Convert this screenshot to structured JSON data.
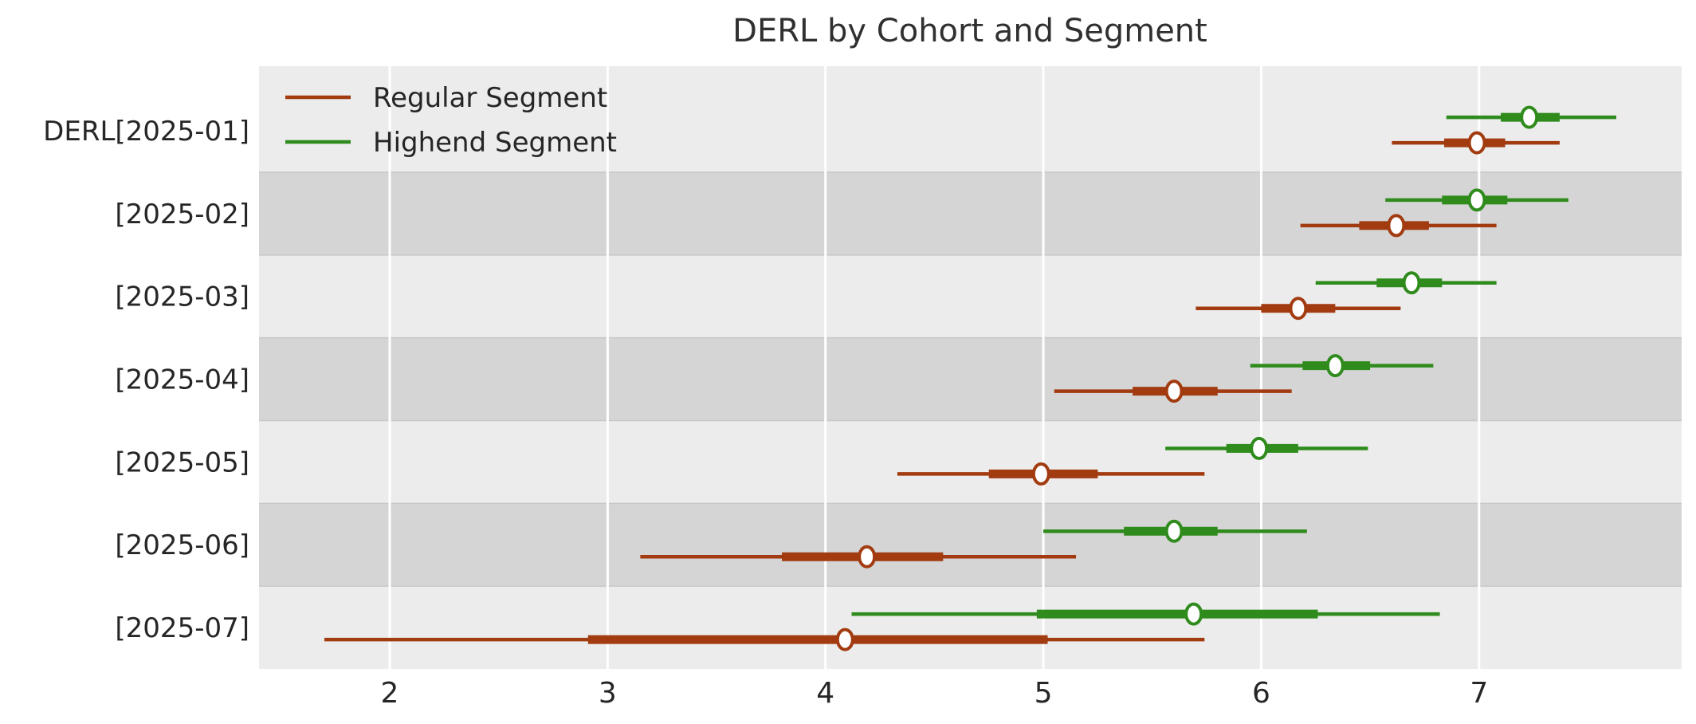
{
  "chart_data": {
    "type": "interval",
    "variant": "forest-plot-credible-intervals",
    "title": "DERL by Cohort and Segment",
    "categories": [
      "DERL[2025-01]",
      "[2025-02]",
      "[2025-03]",
      "[2025-04]",
      "[2025-05]",
      "[2025-06]",
      "[2025-07]"
    ],
    "x_ticks": [
      2,
      3,
      4,
      5,
      6,
      7
    ],
    "xlim": [
      1.4,
      7.93
    ],
    "grid": "vertical-white-gridlines-on-gray-bands",
    "legend_position": "upper-left-inside",
    "colors": {
      "band_light": "#ececec",
      "band_dark": "#d5d5d5",
      "band_edge": "#c7c7c7",
      "gridline": "#ffffff",
      "text": "#262626",
      "title": "#303030",
      "marker_fill": "#ffffff"
    },
    "series": [
      {
        "name": "Regular Segment",
        "color": "#a23b10",
        "intervals": [
          {
            "lo95": 6.6,
            "lo50": 6.84,
            "median": 6.99,
            "hi50": 7.12,
            "hi95": 7.37
          },
          {
            "lo95": 6.18,
            "lo50": 6.45,
            "median": 6.62,
            "hi50": 6.77,
            "hi95": 7.08
          },
          {
            "lo95": 5.7,
            "lo50": 6.0,
            "median": 6.17,
            "hi50": 6.34,
            "hi95": 6.64
          },
          {
            "lo95": 5.05,
            "lo50": 5.41,
            "median": 5.6,
            "hi50": 5.8,
            "hi95": 6.14
          },
          {
            "lo95": 4.33,
            "lo50": 4.75,
            "median": 4.99,
            "hi50": 5.25,
            "hi95": 5.74
          },
          {
            "lo95": 3.15,
            "lo50": 3.8,
            "median": 4.19,
            "hi50": 4.54,
            "hi95": 5.15
          },
          {
            "lo95": 1.7,
            "lo50": 2.91,
            "median": 4.09,
            "hi50": 5.02,
            "hi95": 5.74
          }
        ]
      },
      {
        "name": "Highend Segment",
        "color": "#2e8b1c",
        "intervals": [
          {
            "lo95": 6.85,
            "lo50": 7.1,
            "median": 7.23,
            "hi50": 7.37,
            "hi95": 7.63
          },
          {
            "lo95": 6.57,
            "lo50": 6.83,
            "median": 6.99,
            "hi50": 7.13,
            "hi95": 7.41
          },
          {
            "lo95": 6.25,
            "lo50": 6.53,
            "median": 6.69,
            "hi50": 6.83,
            "hi95": 7.08
          },
          {
            "lo95": 5.95,
            "lo50": 6.19,
            "median": 6.34,
            "hi50": 6.5,
            "hi95": 6.79
          },
          {
            "lo95": 5.56,
            "lo50": 5.84,
            "median": 5.99,
            "hi50": 6.17,
            "hi95": 6.49
          },
          {
            "lo95": 5.0,
            "lo50": 5.37,
            "median": 5.6,
            "hi50": 5.8,
            "hi95": 6.21
          },
          {
            "lo95": 4.12,
            "lo50": 4.97,
            "median": 5.69,
            "hi50": 6.26,
            "hi95": 6.82
          }
        ]
      }
    ]
  }
}
